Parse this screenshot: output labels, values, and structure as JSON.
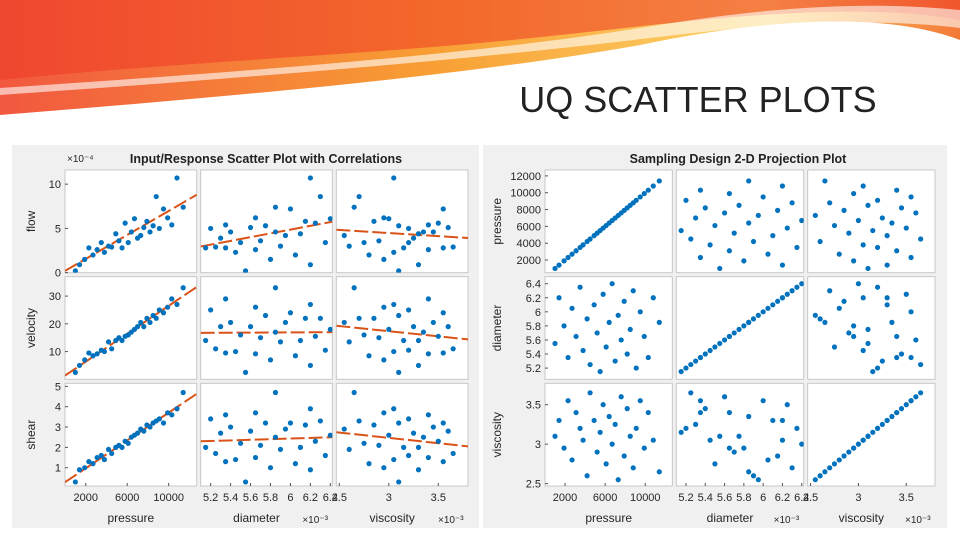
{
  "slide_title": "UQ SCATTER PLOTS",
  "chart_data": [
    {
      "type": "scatter-matrix",
      "title": "Input/Response Scatter Plot with Correlations",
      "marker_color": "#0072bd",
      "fit_lines": true,
      "fit_color": "#d95319",
      "x_vars": [
        {
          "label": "pressure",
          "lim": [
            0,
            12700
          ],
          "ticks": [
            2000,
            6000,
            10000
          ],
          "values": [
            1000,
            1400,
            1900,
            2300,
            2700,
            3100,
            3500,
            3800,
            4200,
            4500,
            4900,
            5200,
            5500,
            5800,
            6100,
            6400,
            6700,
            7000,
            7300,
            7600,
            7900,
            8200,
            8500,
            8800,
            9100,
            9500,
            9900,
            10300,
            10800,
            11400
          ]
        },
        {
          "label": "diameter",
          "scale_label": "×10⁻³",
          "lim": [
            5.1,
            6.42
          ],
          "ticks": [
            5.2,
            5.4,
            5.6,
            5.8,
            6,
            6.2,
            6.4
          ],
          "values": [
            5.55,
            6.2,
            5.8,
            5.35,
            6.05,
            5.65,
            6.35,
            5.45,
            5.9,
            5.25,
            6.1,
            5.7,
            5.15,
            6.25,
            5.5,
            5.85,
            6.4,
            5.3,
            5.95,
            5.6,
            6.15,
            5.4,
            5.75,
            6.3,
            5.2,
            6,
            5.65,
            5.35,
            6.2,
            5.85
          ]
        },
        {
          "label": "viscosity",
          "scale_label": "×10⁻³",
          "lim": [
            2.47,
            3.8
          ],
          "ticks": [
            2.5,
            3,
            3.5
          ],
          "values": [
            3.1,
            3.3,
            2.95,
            3.55,
            2.8,
            3.4,
            3.2,
            3.05,
            2.6,
            3.65,
            3.3,
            2.9,
            3.15,
            3.5,
            2.75,
            3.35,
            3,
            3.25,
            2.55,
            3.6,
            2.85,
            3.45,
            3.1,
            2.7,
            3.2,
            3.55,
            2.95,
            3.4,
            3.05,
            2.65
          ]
        }
      ],
      "y_vars": [
        {
          "label": "flow",
          "scale_label": "×10⁻⁴",
          "lim": [
            0,
            11.6
          ],
          "ticks": [
            0,
            5,
            10
          ],
          "values": [
            0.2,
            0.9,
            1.5,
            2.8,
            2,
            2.6,
            3.4,
            2.3,
            3,
            2.9,
            4.4,
            3.6,
            2.8,
            5.6,
            3.4,
            4.6,
            6.1,
            3.9,
            4.2,
            5.1,
            5.8,
            4.6,
            5.3,
            8.6,
            5,
            7.2,
            6.2,
            5.4,
            10.7,
            7.4
          ]
        },
        {
          "label": "velocity",
          "lim": [
            0,
            37
          ],
          "ticks": [
            10,
            20,
            30
          ],
          "values": [
            2.5,
            5,
            7,
            9.5,
            8.5,
            9.2,
            10.5,
            10,
            13.5,
            11,
            14,
            15,
            14,
            15.5,
            16,
            17,
            18,
            19,
            20.5,
            19,
            22,
            20.5,
            23,
            22,
            25,
            24,
            26,
            29,
            27,
            33
          ]
        },
        {
          "label": "shear",
          "lim": [
            0.1,
            5.15
          ],
          "ticks": [
            1,
            2,
            3,
            4,
            5
          ],
          "values": [
            0.3,
            0.9,
            1,
            1.3,
            1.2,
            1.5,
            1.6,
            1.4,
            1.9,
            1.7,
            2,
            2.1,
            2,
            2.3,
            2.2,
            2.5,
            2.6,
            2.7,
            2.9,
            2.8,
            3.1,
            3,
            3.2,
            3.3,
            3.4,
            3.2,
            3.7,
            3.6,
            3.9,
            4.7
          ]
        }
      ]
    },
    {
      "type": "scatter-matrix",
      "title": "Sampling Design 2-D Projection Plot",
      "marker_color": "#0072bd",
      "fit_lines": false,
      "x_vars": [
        {
          "label": "pressure",
          "lim": [
            0,
            12700
          ],
          "ticks": [
            2000,
            6000,
            10000
          ],
          "values": [
            1000,
            1400,
            1900,
            2300,
            2700,
            3100,
            3500,
            3800,
            4200,
            4500,
            4900,
            5200,
            5500,
            5800,
            6100,
            6400,
            6700,
            7000,
            7300,
            7600,
            7900,
            8200,
            8500,
            8800,
            9100,
            9500,
            9900,
            10300,
            10800,
            11400
          ]
        },
        {
          "label": "diameter",
          "scale_label": "×10⁻³",
          "lim": [
            5.1,
            6.42
          ],
          "ticks": [
            5.2,
            5.4,
            5.6,
            5.8,
            6,
            6.2,
            6.4
          ],
          "values": [
            5.55,
            6.2,
            5.8,
            5.35,
            6.05,
            5.65,
            6.35,
            5.45,
            5.9,
            5.25,
            6.1,
            5.7,
            5.15,
            6.25,
            5.5,
            5.85,
            6.4,
            5.3,
            5.95,
            5.6,
            6.15,
            5.4,
            5.75,
            6.3,
            5.2,
            6,
            5.65,
            5.35,
            6.2,
            5.85
          ]
        },
        {
          "label": "viscosity",
          "scale_label": "×10⁻³",
          "lim": [
            2.47,
            3.8
          ],
          "ticks": [
            2.5,
            3,
            3.5
          ],
          "values": [
            3.1,
            3.3,
            2.95,
            3.55,
            2.8,
            3.4,
            3.2,
            3.05,
            2.6,
            3.65,
            3.3,
            2.9,
            3.15,
            3.5,
            2.75,
            3.35,
            3,
            3.25,
            2.55,
            3.6,
            2.85,
            3.45,
            3.1,
            2.7,
            3.2,
            3.55,
            2.95,
            3.4,
            3.05,
            2.65
          ]
        }
      ],
      "y_vars": [
        {
          "label": "pressure",
          "lim": [
            500,
            12700
          ],
          "ticks": [
            2000,
            4000,
            6000,
            8000,
            10000,
            12000
          ],
          "values": [
            1000,
            1400,
            1900,
            2300,
            2700,
            3100,
            3500,
            3800,
            4200,
            4500,
            4900,
            5200,
            5500,
            5800,
            6100,
            6400,
            6700,
            7000,
            7300,
            7600,
            7900,
            8200,
            8500,
            8800,
            9100,
            9500,
            9900,
            10300,
            10800,
            11400
          ]
        },
        {
          "label": "diameter",
          "lim": [
            5.04,
            6.5
          ],
          "ticks": [
            5.2,
            5.4,
            5.6,
            5.8,
            6,
            6.2,
            6.4
          ],
          "values": [
            5.55,
            6.2,
            5.8,
            5.35,
            6.05,
            5.65,
            6.35,
            5.45,
            5.9,
            5.25,
            6.1,
            5.7,
            5.15,
            6.25,
            5.5,
            5.85,
            6.4,
            5.3,
            5.95,
            5.6,
            6.15,
            5.4,
            5.75,
            6.3,
            5.2,
            6,
            5.65,
            5.35,
            6.2,
            5.85
          ]
        },
        {
          "label": "viscosity",
          "lim": [
            2.47,
            3.77
          ],
          "ticks": [
            2.5,
            3,
            3.5
          ],
          "values": [
            3.1,
            3.3,
            2.95,
            3.55,
            2.8,
            3.4,
            3.2,
            3.05,
            2.6,
            3.65,
            3.3,
            2.9,
            3.15,
            3.5,
            2.75,
            3.35,
            3,
            3.25,
            2.55,
            3.6,
            2.85,
            3.45,
            3.1,
            2.7,
            3.2,
            3.55,
            2.95,
            3.4,
            3.05,
            2.65
          ]
        }
      ]
    }
  ]
}
